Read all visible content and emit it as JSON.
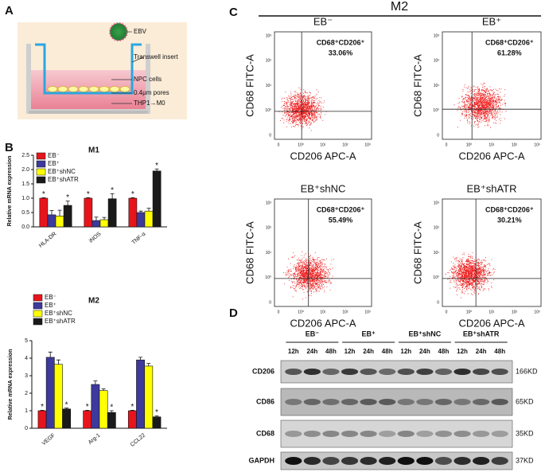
{
  "panel_labels": [
    "A",
    "B",
    "C",
    "D"
  ],
  "diagram": {
    "labels": [
      "EBV",
      "Transwell insert",
      "NPC cells",
      "0.4μm pores",
      "THP1→M0"
    ]
  },
  "chart_data": [
    {
      "type": "bar",
      "title": "M1",
      "y_label": "Relative mRNA expression",
      "categories": [
        "HLA-DR",
        "iNOS",
        "TNF-α"
      ],
      "series": [
        {
          "name": "EB⁻",
          "color": "#e8141c",
          "values": [
            1.0,
            1.0,
            1.0
          ],
          "errors": [
            0.02,
            0.02,
            0.02
          ],
          "annotation": [
            "*",
            "*",
            "*"
          ]
        },
        {
          "name": "EB⁺",
          "color": "#3d3a9c",
          "values": [
            0.42,
            0.22,
            0.5
          ],
          "errors": [
            0.15,
            0.12,
            0.05
          ]
        },
        {
          "name": "EB⁺shNC",
          "color": "#ffff00",
          "values": [
            0.38,
            0.25,
            0.55
          ],
          "errors": [
            0.2,
            0.08,
            0.1
          ]
        },
        {
          "name": "EB⁺shATR",
          "color": "#1a1a1a",
          "values": [
            0.75,
            0.98,
            1.95
          ],
          "errors": [
            0.15,
            0.18,
            0.07
          ],
          "annotation": [
            "*",
            "*",
            "*"
          ]
        }
      ],
      "ylim": [
        0,
        2.5
      ],
      "yticks": [
        {
          "value": 0,
          "label": "0.0"
        },
        {
          "value": 0.5,
          "label": "0.5"
        },
        {
          "value": 1,
          "label": "1.0"
        },
        {
          "value": 1.5,
          "label": "1.5"
        },
        {
          "value": 2,
          "label": "2.0"
        },
        {
          "value": 2.5,
          "label": "2.5"
        }
      ]
    },
    {
      "type": "bar",
      "title": "M2",
      "y_label": "Relative mRNA expression",
      "categories": [
        "VEGF",
        "Arg-1",
        "CCL22"
      ],
      "series": [
        {
          "name": "EB⁻",
          "color": "#e8141c",
          "values": [
            1.0,
            1.0,
            1.0
          ],
          "errors": [
            0.03,
            0.03,
            0.03
          ],
          "annotation": [
            "*",
            "*",
            "*"
          ]
        },
        {
          "name": "EB⁺",
          "color": "#3d3a9c",
          "values": [
            4.05,
            2.5,
            3.9
          ],
          "errors": [
            0.3,
            0.2,
            0.15
          ]
        },
        {
          "name": "EB⁺shNC",
          "color": "#ffff00",
          "values": [
            3.65,
            2.15,
            3.55
          ],
          "errors": [
            0.25,
            0.1,
            0.15
          ]
        },
        {
          "name": "EB⁺shATR",
          "color": "#1a1a1a",
          "values": [
            1.1,
            0.9,
            0.65
          ],
          "errors": [
            0.05,
            0.1,
            0.05
          ],
          "annotation": [
            "*",
            "*",
            "*"
          ]
        }
      ],
      "ylim": [
        0,
        5
      ],
      "yticks": [
        0,
        1,
        2,
        3,
        4,
        5
      ]
    }
  ],
  "flow": {
    "title": "M2",
    "x_label": "CD206 APC-A",
    "y_label": "CD68 FITC-A",
    "ticks": [
      "0",
      "10⁰",
      "10¹",
      "10²",
      "10³"
    ],
    "plots": [
      {
        "title": "EB⁻",
        "gate": "CD68⁺CD206⁺",
        "percent": "33.06%"
      },
      {
        "title": "EB⁺",
        "gate": "CD68⁺CD206⁺",
        "percent": "61.28%"
      },
      {
        "title": "EB⁺shNC",
        "gate": "CD68⁺CD206⁺",
        "percent": "55.49%"
      },
      {
        "title": "EB⁺shATR",
        "gate": "CD68⁺CD206⁺",
        "percent": "30.21%"
      }
    ]
  },
  "blot": {
    "groups": [
      "EB⁻",
      "EB⁺",
      "EB⁺shNC",
      "EB⁺shATR"
    ],
    "times": [
      "12h",
      "24h",
      "48h"
    ],
    "rows": [
      {
        "name": "CD206",
        "size": "166KD"
      },
      {
        "name": "CD86",
        "size": "65KD"
      },
      {
        "name": "CD68",
        "size": "35KD"
      },
      {
        "name": "GAPDH",
        "size": "37KD"
      }
    ]
  }
}
